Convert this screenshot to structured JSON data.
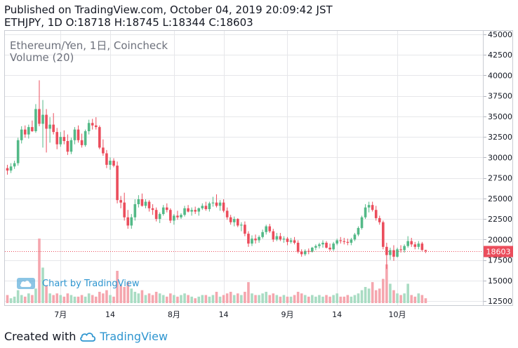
{
  "header": {
    "line1": "Published on TradingView.com, October 04, 2019 20:09:42 JST",
    "line2": "ETHJPY, 1D O:18718 H:18745 L:18344 C:18603"
  },
  "legend": {
    "symbol": "Ethereum/Yen, 1日, Coincheck",
    "volume": "Volume (20)"
  },
  "watermark": "Chart by TradingView",
  "footer": {
    "prefix": "Created with",
    "brand": "TradingView"
  },
  "colors": {
    "up": "#53b987",
    "down": "#eb4d5c",
    "vol_up": "#a9dcc3",
    "vol_down": "#f5a6ae",
    "grid": "#e6e7ea",
    "price_tag": "#eb4d5c",
    "brand": "#2f96d0"
  },
  "chart_data": {
    "type": "candlestick",
    "symbol": "ETHJPY",
    "interval": "1D",
    "last_price": 18603,
    "last_price_label": "18603",
    "ohlc_last": {
      "open": 18718,
      "high": 18745,
      "low": 18344,
      "close": 18603
    },
    "y_axis": {
      "ticks": [
        12500,
        15000,
        17500,
        20000,
        22500,
        25000,
        27500,
        30000,
        32500,
        35000,
        37500,
        40000,
        42500,
        45000
      ],
      "tick_labels": [
        "12500",
        "15000",
        "17500",
        "20000",
        "22500",
        "25000",
        "27500",
        "30000",
        "32500",
        "35000",
        "37500",
        "40000",
        "42500",
        "45000"
      ],
      "ylim": [
        12500,
        45000
      ]
    },
    "x_axis": {
      "labels": [
        {
          "label": "7月",
          "index": 15
        },
        {
          "label": "14",
          "index": 29
        },
        {
          "label": "8月",
          "index": 47
        },
        {
          "label": "14",
          "index": 61
        },
        {
          "label": "9月",
          "index": 79
        },
        {
          "label": "14",
          "index": 93
        },
        {
          "label": "10月",
          "index": 110
        }
      ]
    },
    "grid": true,
    "legend_position": "top-left",
    "candles": [
      [
        28700,
        29100,
        27900,
        28400,
        5
      ],
      [
        28400,
        29300,
        28100,
        28900,
        3
      ],
      [
        28900,
        29600,
        28600,
        29300,
        4
      ],
      [
        29300,
        32400,
        29000,
        32100,
        8
      ],
      [
        32100,
        33800,
        31700,
        33400,
        5
      ],
      [
        33400,
        33900,
        32400,
        32800,
        4
      ],
      [
        32800,
        34000,
        32300,
        33700,
        6
      ],
      [
        33700,
        34500,
        33100,
        33200,
        5
      ],
      [
        33200,
        36500,
        33000,
        35900,
        9
      ],
      [
        35900,
        39400,
        33800,
        34100,
        40
      ],
      [
        34100,
        37000,
        31200,
        35200,
        22
      ],
      [
        35200,
        35900,
        30600,
        33500,
        11
      ],
      [
        33500,
        34900,
        31800,
        34000,
        6
      ],
      [
        34000,
        35400,
        32800,
        33100,
        5
      ],
      [
        33100,
        33600,
        31000,
        31600,
        6
      ],
      [
        31600,
        33100,
        31300,
        32500,
        5
      ],
      [
        32500,
        33300,
        31600,
        32000,
        4
      ],
      [
        32000,
        32800,
        30300,
        30700,
        6
      ],
      [
        30700,
        32400,
        30400,
        32100,
        5
      ],
      [
        32100,
        33700,
        31600,
        33400,
        4
      ],
      [
        33400,
        33900,
        31800,
        32100,
        4
      ],
      [
        32100,
        32900,
        31200,
        31500,
        5
      ],
      [
        31500,
        33400,
        31300,
        33200,
        4
      ],
      [
        33200,
        34600,
        32800,
        34200,
        6
      ],
      [
        34200,
        34700,
        33400,
        33900,
        5
      ],
      [
        33900,
        34900,
        33400,
        33700,
        4
      ],
      [
        33700,
        33900,
        31000,
        31200,
        7
      ],
      [
        31200,
        32200,
        30200,
        30500,
        6
      ],
      [
        30500,
        30900,
        28700,
        29100,
        8
      ],
      [
        29100,
        30000,
        28500,
        29600,
        5
      ],
      [
        29600,
        29900,
        28800,
        29000,
        4
      ],
      [
        29000,
        29500,
        24400,
        24800,
        20
      ],
      [
        24800,
        25300,
        23800,
        24500,
        11
      ],
      [
        24500,
        25700,
        22300,
        22700,
        10
      ],
      [
        22700,
        23600,
        21300,
        21700,
        13
      ],
      [
        21700,
        23100,
        21300,
        22700,
        9
      ],
      [
        22700,
        24900,
        22300,
        24300,
        7
      ],
      [
        24300,
        25400,
        23900,
        24900,
        6
      ],
      [
        24900,
        25600,
        24000,
        24100,
        8
      ],
      [
        24100,
        24900,
        23800,
        24600,
        5
      ],
      [
        24600,
        24800,
        23400,
        23800,
        6
      ],
      [
        23800,
        24300,
        23000,
        23600,
        5
      ],
      [
        23600,
        23900,
        22200,
        22500,
        7
      ],
      [
        22500,
        23300,
        22000,
        23100,
        6
      ],
      [
        23100,
        24200,
        22900,
        23900,
        5
      ],
      [
        23900,
        24400,
        23300,
        23600,
        4
      ],
      [
        23600,
        23800,
        22000,
        22300,
        6
      ],
      [
        22300,
        23100,
        21800,
        22900,
        5
      ],
      [
        22900,
        23500,
        22400,
        22700,
        4
      ],
      [
        22700,
        23200,
        22500,
        23000,
        5
      ],
      [
        23000,
        24100,
        22800,
        23800,
        6
      ],
      [
        23800,
        24200,
        23300,
        23400,
        5
      ],
      [
        23400,
        23900,
        22900,
        23600,
        4
      ],
      [
        23600,
        24000,
        23100,
        23400,
        3
      ],
      [
        23400,
        23900,
        22900,
        23800,
        4
      ],
      [
        23800,
        24400,
        23600,
        24100,
        5
      ],
      [
        24100,
        24600,
        23500,
        23700,
        5
      ],
      [
        23700,
        24600,
        23400,
        24400,
        4
      ],
      [
        24400,
        25200,
        24000,
        24500,
        5
      ],
      [
        24500,
        25500,
        23900,
        24100,
        7
      ],
      [
        24100,
        24800,
        23500,
        24500,
        4
      ],
      [
        24500,
        24900,
        23300,
        23500,
        5
      ],
      [
        23500,
        23900,
        22400,
        22700,
        6
      ],
      [
        22700,
        23000,
        21800,
        22100,
        7
      ],
      [
        22100,
        22800,
        21600,
        22500,
        5
      ],
      [
        22500,
        22600,
        21500,
        21700,
        6
      ],
      [
        21700,
        22100,
        21000,
        21800,
        5
      ],
      [
        21800,
        22200,
        20400,
        20700,
        7
      ],
      [
        20700,
        21000,
        19100,
        19500,
        13
      ],
      [
        19500,
        20500,
        19200,
        20100,
        6
      ],
      [
        20100,
        20600,
        19500,
        19900,
        5
      ],
      [
        19900,
        20500,
        19600,
        20300,
        5
      ],
      [
        20300,
        21200,
        20100,
        20900,
        6
      ],
      [
        20900,
        21800,
        20600,
        21600,
        7
      ],
      [
        21600,
        21900,
        20800,
        21000,
        5
      ],
      [
        21000,
        21300,
        19700,
        20000,
        6
      ],
      [
        20000,
        20800,
        19800,
        20400,
        5
      ],
      [
        20400,
        20800,
        19800,
        20000,
        4
      ],
      [
        20000,
        20400,
        19600,
        20100,
        5
      ],
      [
        20100,
        20300,
        19300,
        19700,
        4
      ],
      [
        19700,
        20200,
        19500,
        19900,
        4
      ],
      [
        19900,
        20300,
        19400,
        19600,
        5
      ],
      [
        19600,
        19900,
        18300,
        18500,
        7
      ],
      [
        18500,
        18800,
        17900,
        18200,
        6
      ],
      [
        18200,
        18800,
        18000,
        18600,
        5
      ],
      [
        18600,
        18900,
        18200,
        18500,
        4
      ],
      [
        18500,
        19100,
        18400,
        19000,
        5
      ],
      [
        19000,
        19400,
        18700,
        19200,
        4
      ],
      [
        19200,
        19600,
        18900,
        19400,
        5
      ],
      [
        19400,
        19900,
        19000,
        19600,
        4
      ],
      [
        19600,
        19800,
        18900,
        19000,
        5
      ],
      [
        19000,
        19500,
        18600,
        18800,
        4
      ],
      [
        18800,
        19700,
        18600,
        19500,
        5
      ],
      [
        19500,
        20100,
        19300,
        19900,
        6
      ],
      [
        19900,
        20300,
        19500,
        19800,
        4
      ],
      [
        19800,
        20200,
        19400,
        19700,
        4
      ],
      [
        19700,
        20100,
        19300,
        19600,
        5
      ],
      [
        19600,
        20200,
        19300,
        20000,
        4
      ],
      [
        20000,
        20800,
        19800,
        20600,
        5
      ],
      [
        20600,
        21600,
        20400,
        21400,
        6
      ],
      [
        21400,
        22900,
        21200,
        22700,
        8
      ],
      [
        22700,
        24300,
        22500,
        23900,
        10
      ],
      [
        23900,
        24600,
        23300,
        24200,
        9
      ],
      [
        24200,
        24600,
        23400,
        23600,
        13
      ],
      [
        23600,
        24100,
        22300,
        22600,
        8
      ],
      [
        22600,
        22900,
        21800,
        22100,
        9
      ],
      [
        22100,
        22300,
        18800,
        19100,
        15
      ],
      [
        19100,
        19600,
        16400,
        18100,
        24
      ],
      [
        18100,
        19000,
        17500,
        18700,
        12
      ],
      [
        18700,
        19300,
        17400,
        17900,
        8
      ],
      [
        17900,
        19000,
        17800,
        18800,
        6
      ],
      [
        18800,
        19300,
        18400,
        18700,
        5
      ],
      [
        18700,
        19400,
        18400,
        19200,
        6
      ],
      [
        19200,
        20400,
        19000,
        19800,
        12
      ],
      [
        19800,
        20200,
        19100,
        19400,
        5
      ],
      [
        19400,
        19700,
        18800,
        19100,
        4
      ],
      [
        19100,
        19800,
        18800,
        19500,
        6
      ],
      [
        19500,
        19700,
        18600,
        18718,
        5
      ],
      [
        18718,
        18745,
        18344,
        18603,
        3
      ]
    ]
  }
}
